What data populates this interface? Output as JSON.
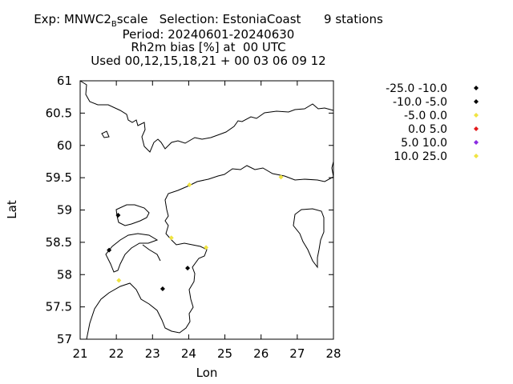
{
  "chart_data": {
    "type": "scatter",
    "title_lines": [
      "Exp: MNWC2_Bscale   Selection: EstoniaCoast      9 stations",
      "Period: 20240601-20240630",
      "Rh2m bias [%] at  00 UTC",
      "Used 00,12,15,18,21 + 00 03 06 09 12"
    ],
    "title_subscript": {
      "base": "Exp: MNWC2",
      "sub": "B",
      "rest": "scale   Selection: EstoniaCoast      9 stations"
    },
    "xlabel": "Lon",
    "ylabel": "Lat",
    "xlim": [
      21,
      28
    ],
    "ylim": [
      57,
      61
    ],
    "xticks": [
      "21",
      "22",
      "23",
      "24",
      "25",
      "26",
      "27",
      "28"
    ],
    "yticks": [
      "57",
      "57.5",
      "58",
      "58.5",
      "59",
      "59.5",
      "60",
      "60.5",
      "61"
    ],
    "legend_position": "right",
    "legend": [
      {
        "label": "-25.0 -10.0",
        "color": "#000000"
      },
      {
        "label": "-10.0 -5.0",
        "color": "#000000"
      },
      {
        "label": "-5.0 0.0",
        "color": "#f0e442"
      },
      {
        "label": "0.0 5.0",
        "color": "#e41a1c"
      },
      {
        "label": "5.0 10.0",
        "color": "#8a2be2"
      },
      {
        "label": "10.0 25.0",
        "color": "#f0e442"
      }
    ],
    "points": [
      {
        "lon": 22.05,
        "lat": 58.92,
        "color": "#000000"
      },
      {
        "lon": 21.8,
        "lat": 58.38,
        "color": "#000000"
      },
      {
        "lon": 23.28,
        "lat": 57.78,
        "color": "#000000"
      },
      {
        "lon": 23.97,
        "lat": 58.1,
        "color": "#000000"
      },
      {
        "lon": 22.07,
        "lat": 57.91,
        "color": "#f0e442"
      },
      {
        "lon": 23.52,
        "lat": 58.57,
        "color": "#f0e442"
      },
      {
        "lon": 24.48,
        "lat": 58.42,
        "color": "#f0e442"
      },
      {
        "lon": 24.02,
        "lat": 59.39,
        "color": "#f0e442"
      },
      {
        "lon": 26.55,
        "lat": 59.51,
        "color": "#f0e442"
      }
    ]
  }
}
